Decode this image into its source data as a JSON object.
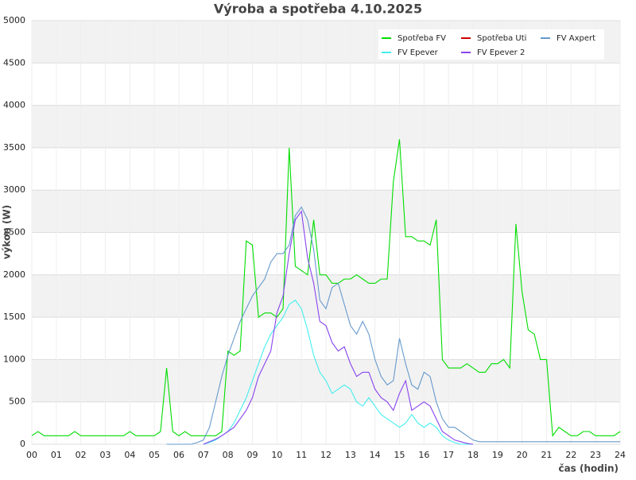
{
  "chart_data": {
    "type": "line",
    "title": "Výroba a spotřeba 4.10.2025",
    "y_label": "výkon (W)",
    "x_label": "čas (hodin)",
    "xlim": [
      0,
      24
    ],
    "ylim": [
      0,
      5000
    ],
    "xticks": [
      {
        "value": 0,
        "label": "00"
      },
      {
        "value": 1,
        "label": "01"
      },
      {
        "value": 2,
        "label": "02"
      },
      {
        "value": 3,
        "label": "03"
      },
      {
        "value": 4,
        "label": "04"
      },
      {
        "value": 5,
        "label": "05"
      },
      {
        "value": 6,
        "label": "06"
      },
      {
        "value": 7,
        "label": "07"
      },
      {
        "value": 8,
        "label": "08"
      },
      {
        "value": 9,
        "label": "09"
      },
      10,
      11,
      12,
      13,
      14,
      15,
      16,
      17,
      18,
      19,
      20,
      21,
      22,
      23,
      24
    ],
    "yticks": [
      0,
      500,
      1000,
      1500,
      2000,
      2500,
      3000,
      3500,
      4000,
      4500,
      5000
    ],
    "grid": true,
    "legend": "top-right",
    "x": [
      0,
      0.25,
      0.5,
      0.75,
      1,
      1.25,
      1.5,
      1.75,
      2,
      2.25,
      2.5,
      2.75,
      3,
      3.25,
      3.5,
      3.75,
      4,
      4.25,
      4.5,
      4.75,
      5,
      5.25,
      5.5,
      5.75,
      6,
      6.25,
      6.5,
      6.75,
      7,
      7.25,
      7.5,
      7.75,
      8,
      8.25,
      8.5,
      8.75,
      9,
      9.25,
      9.5,
      9.75,
      10,
      10.25,
      10.5,
      10.75,
      11,
      11.25,
      11.5,
      11.75,
      12,
      12.25,
      12.5,
      12.75,
      13,
      13.25,
      13.5,
      13.75,
      14,
      14.25,
      14.5,
      14.75,
      15,
      15.25,
      15.5,
      15.75,
      16,
      16.25,
      16.5,
      16.75,
      17,
      17.25,
      17.5,
      17.75,
      18,
      18.25,
      18.5,
      18.75,
      19,
      19.25,
      19.5,
      19.75,
      20,
      20.25,
      20.5,
      20.75,
      21,
      21.25,
      21.5,
      21.75,
      22,
      22.25,
      22.5,
      22.75,
      23,
      23.25,
      23.5,
      23.75,
      24
    ],
    "series": [
      {
        "name": "Spotřeba FV",
        "color": "#00dd00",
        "values": [
          100,
          150,
          100,
          100,
          100,
          100,
          100,
          150,
          100,
          100,
          100,
          100,
          100,
          100,
          100,
          100,
          150,
          100,
          100,
          100,
          100,
          150,
          900,
          150,
          100,
          150,
          100,
          100,
          100,
          100,
          100,
          150,
          1100,
          1050,
          1100,
          2400,
          2350,
          1500,
          1550,
          1550,
          1500,
          1600,
          3500,
          2100,
          2050,
          2000,
          2650,
          2000,
          2000,
          1900,
          1900,
          1950,
          1950,
          2000,
          1950,
          1900,
          1900,
          1950,
          1950,
          3100,
          3600,
          2450,
          2450,
          2400,
          2400,
          2350,
          2650,
          1000,
          900,
          900,
          900,
          950,
          900,
          850,
          850,
          950,
          950,
          1000,
          900,
          2600,
          1800,
          1350,
          1300,
          1000,
          1000,
          100,
          200,
          150,
          100,
          100,
          150,
          150,
          100,
          100,
          100,
          100,
          150
        ]
      },
      {
        "name": "Spotřeba Uti",
        "color": "#cc0000",
        "values": [
          null,
          null,
          null,
          null,
          null,
          null,
          null,
          null,
          null,
          null,
          null,
          null,
          null,
          null,
          null,
          null,
          null,
          null,
          null,
          null,
          null,
          null,
          null,
          null,
          null,
          null,
          null,
          null,
          null,
          null,
          null,
          null,
          null,
          null,
          null,
          null,
          null,
          null,
          null,
          null,
          null,
          null,
          null,
          null,
          null,
          null,
          null,
          null,
          null,
          null,
          null,
          null,
          null,
          null,
          null,
          null,
          null,
          null,
          null,
          null,
          null,
          null,
          null,
          null,
          null,
          null,
          null,
          null,
          null,
          null,
          null,
          null,
          null,
          null,
          null,
          null,
          null,
          null,
          null,
          null,
          null,
          null,
          null,
          null,
          null,
          null,
          null,
          null,
          null,
          null,
          null,
          null,
          null,
          null,
          null,
          null,
          null
        ]
      },
      {
        "name": "FV Axpert",
        "color": "#6699cc",
        "values": [
          null,
          null,
          null,
          null,
          null,
          null,
          null,
          null,
          null,
          null,
          null,
          null,
          null,
          null,
          null,
          null,
          null,
          null,
          null,
          null,
          null,
          null,
          0,
          0,
          0,
          0,
          0,
          20,
          50,
          200,
          500,
          800,
          1050,
          1250,
          1450,
          1600,
          1750,
          1850,
          1950,
          2150,
          2250,
          2250,
          2350,
          2700,
          2800,
          2650,
          2300,
          1700,
          1600,
          1850,
          1900,
          1650,
          1400,
          1300,
          1450,
          1300,
          1000,
          800,
          700,
          750,
          1250,
          950,
          700,
          650,
          850,
          800,
          500,
          300,
          200,
          200,
          150,
          100,
          50,
          30,
          30,
          30,
          30,
          30,
          30,
          30,
          30,
          30,
          30,
          30,
          30,
          30,
          30,
          30,
          30,
          30,
          30,
          30,
          30,
          30,
          30,
          30,
          30
        ]
      },
      {
        "name": "FV Epever",
        "color": "#44eeee",
        "values": [
          null,
          null,
          null,
          null,
          null,
          null,
          null,
          null,
          null,
          null,
          null,
          null,
          null,
          null,
          null,
          null,
          null,
          null,
          null,
          null,
          null,
          null,
          null,
          null,
          null,
          null,
          null,
          null,
          0,
          20,
          50,
          100,
          150,
          250,
          400,
          550,
          750,
          950,
          1150,
          1300,
          1400,
          1500,
          1650,
          1700,
          1600,
          1350,
          1050,
          850,
          750,
          600,
          650,
          700,
          650,
          500,
          450,
          550,
          450,
          350,
          300,
          250,
          200,
          250,
          350,
          250,
          200,
          250,
          200,
          100,
          50,
          20,
          0,
          0,
          0,
          null,
          null,
          null,
          null,
          null,
          null,
          null,
          null,
          null,
          null,
          null,
          null,
          null,
          null,
          null,
          null,
          null,
          null,
          null,
          null,
          null,
          null,
          null,
          null
        ]
      },
      {
        "name": "FV Epever 2",
        "color": "#8844ee",
        "values": [
          null,
          null,
          null,
          null,
          null,
          null,
          null,
          null,
          null,
          null,
          null,
          null,
          null,
          null,
          null,
          null,
          null,
          null,
          null,
          null,
          null,
          null,
          null,
          null,
          null,
          null,
          null,
          null,
          0,
          30,
          60,
          100,
          150,
          200,
          300,
          400,
          550,
          800,
          950,
          1100,
          1550,
          1750,
          2250,
          2650,
          2750,
          2200,
          1900,
          1450,
          1400,
          1200,
          1100,
          1150,
          950,
          800,
          850,
          850,
          650,
          550,
          500,
          400,
          600,
          750,
          400,
          450,
          500,
          450,
          300,
          150,
          100,
          50,
          30,
          10,
          0,
          null,
          null,
          null,
          null,
          null,
          null,
          null,
          null,
          null,
          null,
          null,
          null,
          null,
          null,
          null,
          null,
          null,
          null,
          null,
          null,
          null,
          null,
          null,
          null
        ]
      }
    ]
  }
}
